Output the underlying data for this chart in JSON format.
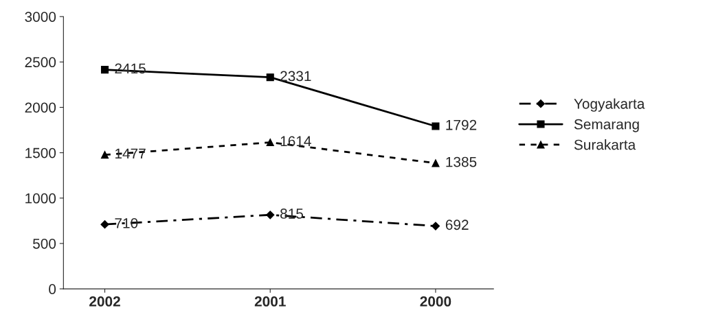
{
  "chart_data": {
    "type": "line",
    "categories": [
      "2002",
      "2001",
      "2000"
    ],
    "series": [
      {
        "name": "Yogyakarta",
        "color": "#000000",
        "values": [
          710,
          815,
          692
        ],
        "marker": "diamond",
        "line_style": "dashdot"
      },
      {
        "name": "Semarang",
        "color": "#000000",
        "values": [
          2415,
          2331,
          1792
        ],
        "marker": "square",
        "line_style": "solid"
      },
      {
        "name": "Surakarta",
        "color": "#000000",
        "values": [
          1477,
          1614,
          1385
        ],
        "marker": "triangle",
        "line_style": "dashed"
      }
    ],
    "ylim": [
      0,
      3000
    ],
    "yticks": [
      0,
      500,
      1000,
      1500,
      2000,
      2500,
      3000
    ],
    "grid": false,
    "legend": "right",
    "data_labels": true
  }
}
